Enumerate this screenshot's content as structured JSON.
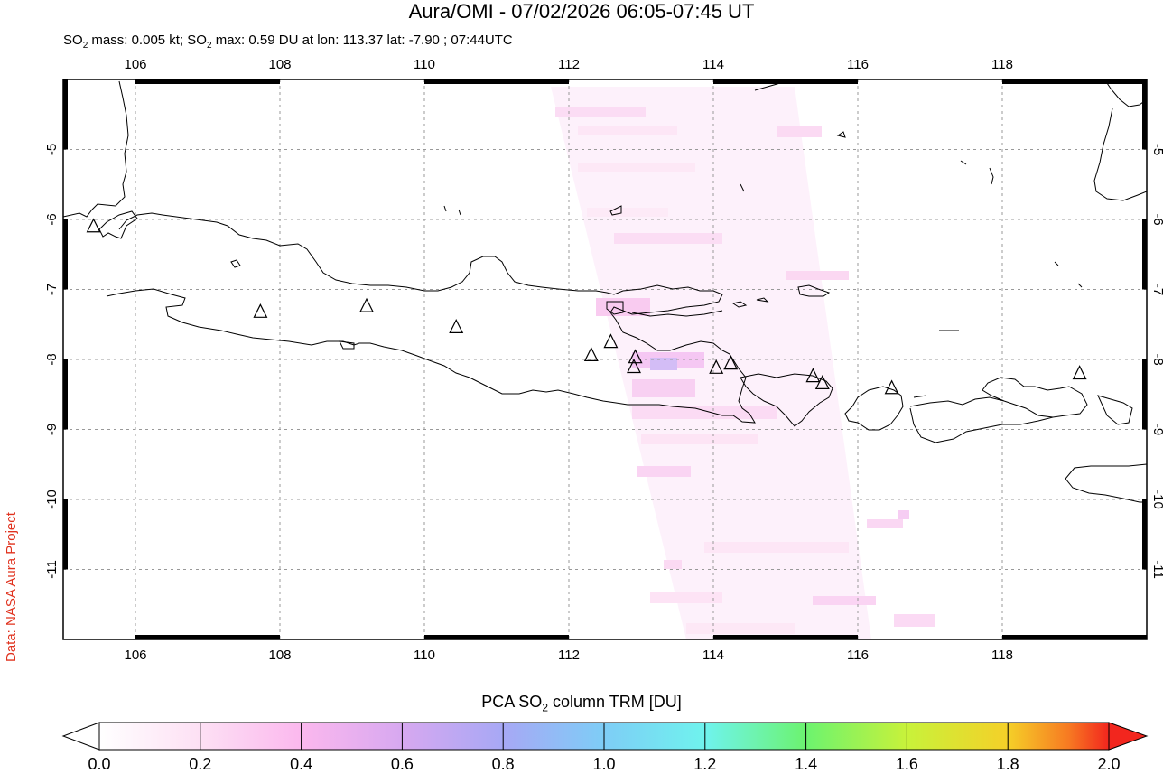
{
  "title": "Aura/OMI - 07/02/2026 06:05-07:45 UT",
  "subtitle_parts": {
    "a": "SO",
    "a_sub": "2",
    "b": " mass: 0.005 kt; SO",
    "b_sub": "2",
    "c": " max: 0.59 DU at lon: 113.37 lat: -7.90 ; 07:44UTC"
  },
  "credit": "Data: NASA Aura Project",
  "map": {
    "lon_range": [
      105.0,
      120.0
    ],
    "lat_range": [
      -12.0,
      -4.0
    ],
    "lon_ticks": [
      "106",
      "108",
      "110",
      "112",
      "114",
      "116",
      "118"
    ],
    "lat_ticks": [
      "-5",
      "-6",
      "-7",
      "-8",
      "-9",
      "-10",
      "-11"
    ],
    "volcano_markers": [
      [
        105.42,
        -6.1
      ],
      [
        107.73,
        -7.32
      ],
      [
        109.2,
        -7.24
      ],
      [
        110.44,
        -7.54
      ],
      [
        112.31,
        -7.94
      ],
      [
        112.58,
        -7.75
      ],
      [
        112.92,
        -7.97
      ],
      [
        112.9,
        -8.11
      ],
      [
        114.04,
        -8.12
      ],
      [
        114.24,
        -8.06
      ],
      [
        115.38,
        -8.24
      ],
      [
        115.51,
        -8.34
      ],
      [
        116.47,
        -8.41
      ],
      [
        119.07,
        -8.2
      ]
    ],
    "colors": {
      "coast": "#000000",
      "grid": "#999999",
      "frame": "#000000"
    }
  },
  "colorbar": {
    "title_a": "PCA SO",
    "title_sub": "2",
    "title_b": " column TRM [DU]",
    "labels": [
      "0.0",
      "0.2",
      "0.4",
      "0.6",
      "0.8",
      "1.0",
      "1.2",
      "1.4",
      "1.6",
      "1.8",
      "2.0"
    ],
    "colors": [
      "#ffffff",
      "#fde0f4",
      "#fbb8ee",
      "#d7a8f0",
      "#a7a8f5",
      "#7ecdf6",
      "#6ff3ee",
      "#6cf36f",
      "#c8f23a",
      "#f5d028",
      "#f77a22",
      "#f2261e"
    ]
  }
}
